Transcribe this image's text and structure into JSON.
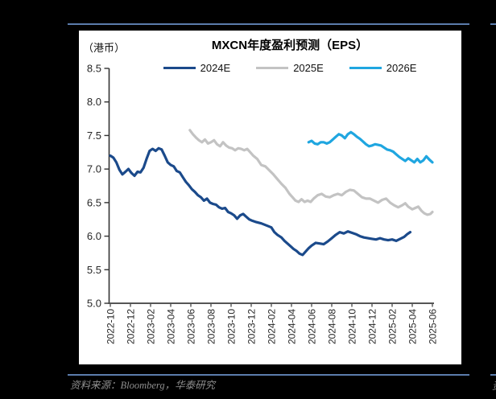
{
  "page": {
    "source_note": "资料来源：Bloomberg，华泰研究",
    "adjacent_card_fragment": "资"
  },
  "theme": {
    "page_bg": "#000000",
    "card_bg": "#ffffff",
    "rule_color": "#5B7CAC",
    "axis_color": "#555555",
    "tick_text_color": "#262626",
    "source_text_color": "#8F8F8F"
  },
  "chart_data": {
    "type": "line",
    "title": "MXCN年度盈利预测（EPS）",
    "unit_label": "（港币）",
    "ylabel": "",
    "xlabel": "",
    "grid": false,
    "legend_position": "top",
    "ylim": [
      5.0,
      8.5
    ],
    "y_tick_labels": [
      "8.5",
      "8.0",
      "7.5",
      "7.0",
      "6.5",
      "6.0",
      "5.5",
      "5.0"
    ],
    "x_tick_labels": [
      "2022-10",
      "2022-12",
      "2023-02",
      "2023-04",
      "2023-06",
      "2023-08",
      "2023-10",
      "2023-12",
      "2024-02",
      "2024-04",
      "2024-06",
      "2024-08",
      "2024-10",
      "2024-12",
      "2025-02",
      "2025-04",
      "2025-06"
    ],
    "x_unit": "months since 2022-10, ticks every 2 months",
    "series": [
      {
        "name": "2024E",
        "color": "#1B4A8B",
        "points": [
          [
            0,
            7.2
          ],
          [
            0.3,
            7.17
          ],
          [
            0.6,
            7.1
          ],
          [
            0.9,
            6.99
          ],
          [
            1.2,
            6.92
          ],
          [
            1.5,
            6.96
          ],
          [
            1.8,
            7.0
          ],
          [
            2.1,
            6.94
          ],
          [
            2.4,
            6.9
          ],
          [
            2.7,
            6.96
          ],
          [
            3.0,
            6.95
          ],
          [
            3.3,
            7.02
          ],
          [
            3.6,
            7.15
          ],
          [
            3.9,
            7.27
          ],
          [
            4.2,
            7.3
          ],
          [
            4.5,
            7.27
          ],
          [
            4.8,
            7.31
          ],
          [
            5.1,
            7.29
          ],
          [
            5.4,
            7.2
          ],
          [
            5.7,
            7.1
          ],
          [
            6.0,
            7.06
          ],
          [
            6.3,
            7.04
          ],
          [
            6.6,
            6.97
          ],
          [
            6.9,
            6.95
          ],
          [
            7.2,
            6.88
          ],
          [
            7.5,
            6.81
          ],
          [
            7.8,
            6.76
          ],
          [
            8.1,
            6.7
          ],
          [
            8.4,
            6.66
          ],
          [
            8.7,
            6.61
          ],
          [
            9.0,
            6.58
          ],
          [
            9.3,
            6.53
          ],
          [
            9.6,
            6.56
          ],
          [
            9.9,
            6.5
          ],
          [
            10.2,
            6.48
          ],
          [
            10.5,
            6.47
          ],
          [
            10.8,
            6.43
          ],
          [
            11.1,
            6.41
          ],
          [
            11.4,
            6.42
          ],
          [
            11.7,
            6.36
          ],
          [
            12.0,
            6.34
          ],
          [
            12.3,
            6.31
          ],
          [
            12.6,
            6.26
          ],
          [
            12.9,
            6.31
          ],
          [
            13.2,
            6.33
          ],
          [
            13.5,
            6.29
          ],
          [
            13.8,
            6.25
          ],
          [
            14.1,
            6.23
          ],
          [
            14.5,
            6.21
          ],
          [
            15.0,
            6.19
          ],
          [
            15.5,
            6.16
          ],
          [
            16.0,
            6.13
          ],
          [
            16.3,
            6.06
          ],
          [
            16.6,
            6.02
          ],
          [
            17.0,
            5.98
          ],
          [
            17.3,
            5.93
          ],
          [
            17.6,
            5.89
          ],
          [
            17.9,
            5.85
          ],
          [
            18.2,
            5.81
          ],
          [
            18.5,
            5.78
          ],
          [
            18.8,
            5.74
          ],
          [
            19.1,
            5.72
          ],
          [
            19.4,
            5.77
          ],
          [
            19.7,
            5.82
          ],
          [
            20.0,
            5.86
          ],
          [
            20.4,
            5.9
          ],
          [
            20.8,
            5.89
          ],
          [
            21.2,
            5.88
          ],
          [
            21.6,
            5.92
          ],
          [
            22.0,
            5.97
          ],
          [
            22.4,
            6.02
          ],
          [
            22.8,
            6.06
          ],
          [
            23.2,
            6.04
          ],
          [
            23.6,
            6.07
          ],
          [
            24.0,
            6.05
          ],
          [
            24.4,
            6.03
          ],
          [
            24.8,
            6.0
          ],
          [
            25.2,
            5.98
          ],
          [
            25.6,
            5.97
          ],
          [
            26.0,
            5.96
          ],
          [
            26.4,
            5.95
          ],
          [
            26.8,
            5.97
          ],
          [
            27.2,
            5.95
          ],
          [
            27.6,
            5.94
          ],
          [
            28.0,
            5.95
          ],
          [
            28.4,
            5.93
          ],
          [
            28.8,
            5.96
          ],
          [
            29.2,
            5.99
          ],
          [
            29.5,
            6.03
          ],
          [
            29.8,
            6.06
          ]
        ]
      },
      {
        "name": "2025E",
        "color": "#C3C3C3",
        "points": [
          [
            7.9,
            7.58
          ],
          [
            8.2,
            7.52
          ],
          [
            8.5,
            7.47
          ],
          [
            8.8,
            7.43
          ],
          [
            9.1,
            7.4
          ],
          [
            9.4,
            7.44
          ],
          [
            9.7,
            7.38
          ],
          [
            10.0,
            7.4
          ],
          [
            10.3,
            7.43
          ],
          [
            10.6,
            7.37
          ],
          [
            10.9,
            7.34
          ],
          [
            11.2,
            7.4
          ],
          [
            11.5,
            7.35
          ],
          [
            11.8,
            7.32
          ],
          [
            12.1,
            7.31
          ],
          [
            12.4,
            7.28
          ],
          [
            12.7,
            7.31
          ],
          [
            13.0,
            7.3
          ],
          [
            13.3,
            7.28
          ],
          [
            13.6,
            7.3
          ],
          [
            13.9,
            7.25
          ],
          [
            14.2,
            7.2
          ],
          [
            14.6,
            7.15
          ],
          [
            15.0,
            7.06
          ],
          [
            15.4,
            7.04
          ],
          [
            15.8,
            6.98
          ],
          [
            16.2,
            6.92
          ],
          [
            16.6,
            6.85
          ],
          [
            17.0,
            6.78
          ],
          [
            17.4,
            6.72
          ],
          [
            17.8,
            6.63
          ],
          [
            18.1,
            6.58
          ],
          [
            18.4,
            6.53
          ],
          [
            18.7,
            6.51
          ],
          [
            19.0,
            6.55
          ],
          [
            19.3,
            6.51
          ],
          [
            19.6,
            6.53
          ],
          [
            19.9,
            6.51
          ],
          [
            20.2,
            6.56
          ],
          [
            20.6,
            6.61
          ],
          [
            21.0,
            6.63
          ],
          [
            21.4,
            6.59
          ],
          [
            21.8,
            6.58
          ],
          [
            22.2,
            6.61
          ],
          [
            22.6,
            6.63
          ],
          [
            23.0,
            6.61
          ],
          [
            23.4,
            6.66
          ],
          [
            23.8,
            6.69
          ],
          [
            24.2,
            6.68
          ],
          [
            24.6,
            6.63
          ],
          [
            25.0,
            6.58
          ],
          [
            25.4,
            6.56
          ],
          [
            25.8,
            6.56
          ],
          [
            26.2,
            6.53
          ],
          [
            26.6,
            6.5
          ],
          [
            27.0,
            6.54
          ],
          [
            27.4,
            6.56
          ],
          [
            27.8,
            6.5
          ],
          [
            28.2,
            6.46
          ],
          [
            28.6,
            6.43
          ],
          [
            29.0,
            6.46
          ],
          [
            29.3,
            6.49
          ],
          [
            29.6,
            6.44
          ],
          [
            30.0,
            6.4
          ],
          [
            30.3,
            6.42
          ],
          [
            30.6,
            6.44
          ],
          [
            30.9,
            6.38
          ],
          [
            31.2,
            6.34
          ],
          [
            31.5,
            6.32
          ],
          [
            31.8,
            6.33
          ],
          [
            32.0,
            6.36
          ]
        ]
      },
      {
        "name": "2026E",
        "color": "#1FA6E0",
        "points": [
          [
            19.7,
            7.4
          ],
          [
            20.0,
            7.42
          ],
          [
            20.3,
            7.38
          ],
          [
            20.6,
            7.37
          ],
          [
            20.9,
            7.4
          ],
          [
            21.2,
            7.4
          ],
          [
            21.5,
            7.38
          ],
          [
            21.8,
            7.4
          ],
          [
            22.1,
            7.44
          ],
          [
            22.4,
            7.48
          ],
          [
            22.7,
            7.52
          ],
          [
            23.0,
            7.5
          ],
          [
            23.3,
            7.46
          ],
          [
            23.6,
            7.52
          ],
          [
            23.9,
            7.55
          ],
          [
            24.2,
            7.52
          ],
          [
            24.5,
            7.48
          ],
          [
            24.8,
            7.45
          ],
          [
            25.1,
            7.41
          ],
          [
            25.4,
            7.37
          ],
          [
            25.7,
            7.34
          ],
          [
            26.0,
            7.35
          ],
          [
            26.3,
            7.37
          ],
          [
            26.6,
            7.36
          ],
          [
            26.9,
            7.35
          ],
          [
            27.2,
            7.32
          ],
          [
            27.5,
            7.29
          ],
          [
            27.8,
            7.28
          ],
          [
            28.1,
            7.26
          ],
          [
            28.4,
            7.22
          ],
          [
            28.7,
            7.18
          ],
          [
            29.0,
            7.15
          ],
          [
            29.3,
            7.12
          ],
          [
            29.6,
            7.16
          ],
          [
            29.9,
            7.13
          ],
          [
            30.2,
            7.1
          ],
          [
            30.5,
            7.15
          ],
          [
            30.8,
            7.1
          ],
          [
            31.1,
            7.13
          ],
          [
            31.4,
            7.19
          ],
          [
            31.7,
            7.14
          ],
          [
            32.0,
            7.1
          ]
        ]
      }
    ]
  }
}
